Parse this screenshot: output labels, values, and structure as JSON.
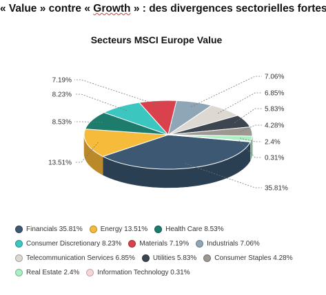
{
  "headline": {
    "part1": "« Value » contre « ",
    "part2": "Growth",
    "part3": " » : des divergences sectorielles fortes"
  },
  "chart_data": {
    "type": "pie",
    "style": "3d",
    "title": "Secteurs MSCI Europe Value",
    "legend_position": "bottom",
    "slices": [
      {
        "name": "Financials",
        "value": 35.81,
        "label": "35.81%",
        "legend": "Financials 35.81%",
        "color": "#3d5873",
        "side": "#2b3f53"
      },
      {
        "name": "Energy",
        "value": 13.51,
        "label": "13.51%",
        "legend": "Energy 13.51%",
        "color": "#f7bb3c",
        "side": "#b9892a"
      },
      {
        "name": "Health Care",
        "value": 8.53,
        "label": "8.53%",
        "legend": "Health Care 8.53%",
        "color": "#1d7c6c",
        "side": "#13594d"
      },
      {
        "name": "Consumer Discretionary",
        "value": 8.23,
        "label": "8.23%",
        "legend": "Consumer Discretionary 8.23%",
        "color": "#3bc6c0",
        "side": "#2a918c"
      },
      {
        "name": "Materials",
        "value": 7.19,
        "label": "7.19%",
        "legend": "Materials 7.19%",
        "color": "#d9424c",
        "side": "#9e2f36"
      },
      {
        "name": "Industrials",
        "value": 7.06,
        "label": "7.06%",
        "legend": "Industrials 7.06%",
        "color": "#8ea6b6",
        "side": "#687a86"
      },
      {
        "name": "Telecommunication Services",
        "value": 6.85,
        "label": "6.85%",
        "legend": "Telecommunication Services 6.85%",
        "color": "#ded8d2",
        "side": "#a7a29d"
      },
      {
        "name": "Utilities",
        "value": 5.83,
        "label": "5.83%",
        "legend": "Utilities 5.83%",
        "color": "#3c4550",
        "side": "#292f37"
      },
      {
        "name": "Consumer Staples",
        "value": 4.28,
        "label": "4.28%",
        "legend": "Consumer Staples 4.28%",
        "color": "#9d9892",
        "side": "#75716c"
      },
      {
        "name": "Real Estate",
        "value": 2.4,
        "label": "2.4%",
        "legend": "Real Estate 2.4%",
        "color": "#aaf0c4",
        "side": "#7cb390"
      },
      {
        "name": "Information Technology",
        "value": 0.31,
        "label": "0.31%",
        "legend": "Information Technology 0.31%",
        "color": "#f6d5d8",
        "side": "#c2a5a8"
      }
    ],
    "legend_rows": [
      [
        0,
        1,
        2
      ],
      [
        3,
        4,
        5
      ],
      [
        6,
        7,
        8
      ],
      [
        9,
        10
      ]
    ]
  }
}
